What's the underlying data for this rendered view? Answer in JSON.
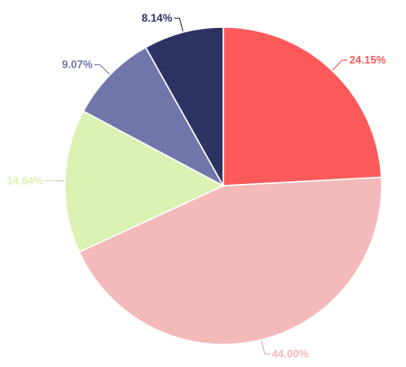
{
  "chart_data": {
    "type": "pie",
    "title": "",
    "start_angle_deg": 0,
    "direction": "clockwise",
    "slices": [
      {
        "value": 24.15,
        "label": "24.15%",
        "color": "#fc5a5a"
      },
      {
        "value": 44.0,
        "label": "44.00%",
        "color": "#f4b9b9"
      },
      {
        "value": 14.64,
        "label": "14.64%",
        "color": "#dbf2b3"
      },
      {
        "value": 9.07,
        "label": "9.07%",
        "color": "#7176aa"
      },
      {
        "value": 8.14,
        "label": "8.14%",
        "color": "#2e3263"
      }
    ]
  }
}
